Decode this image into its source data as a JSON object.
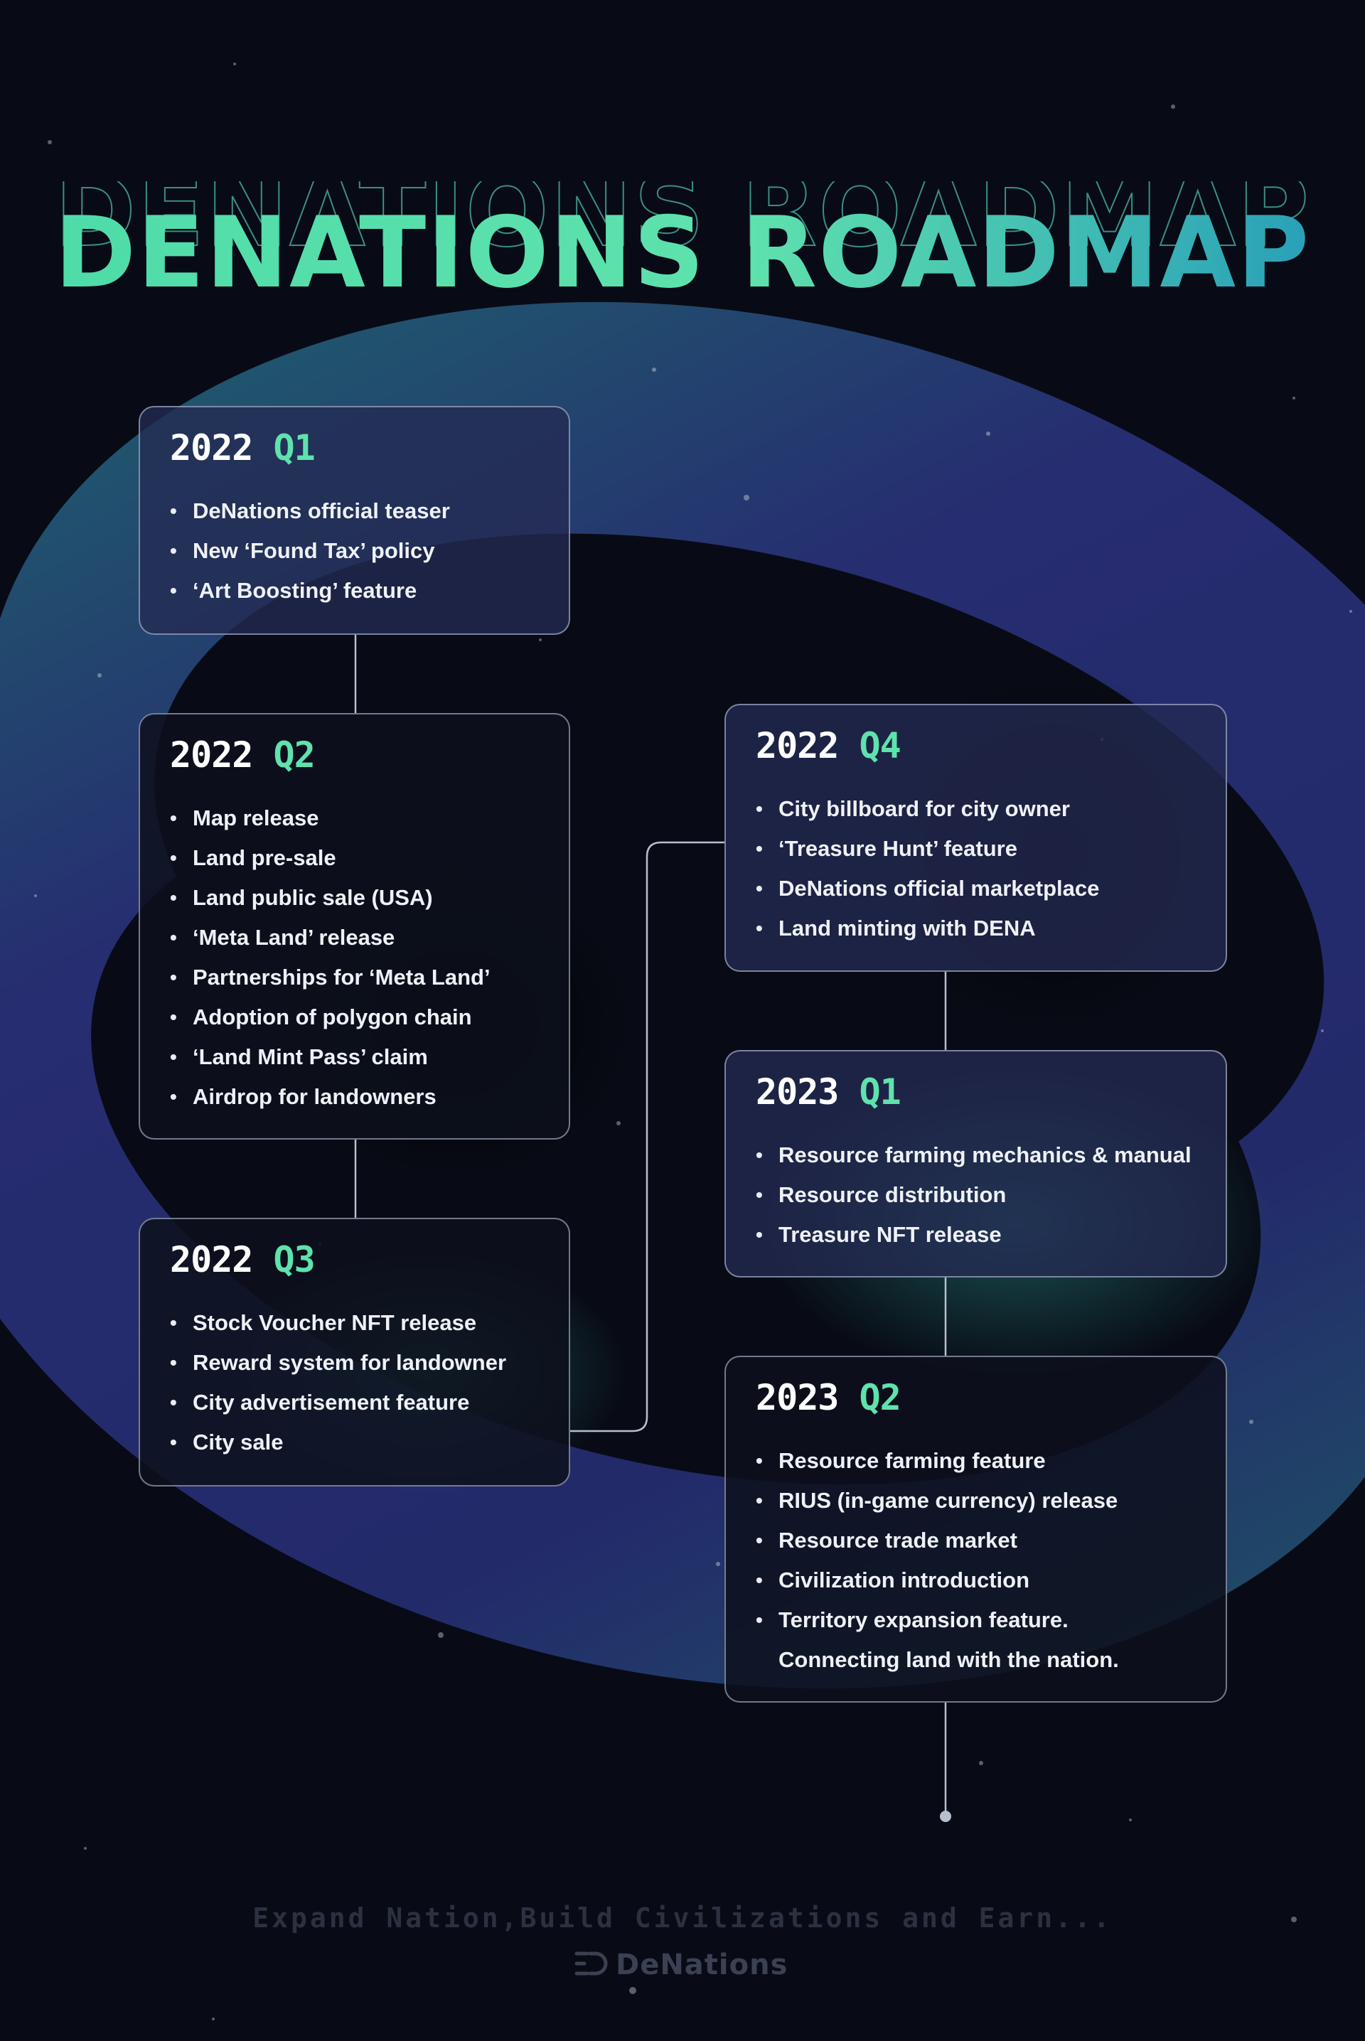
{
  "title": "DENATIONS ROADMAP",
  "colors": {
    "background": "#080b15",
    "accent_green": "#5fe2ad",
    "accent_teal": "#2aa6b5",
    "card_border": "#c8d2eb",
    "ring_blue": "#232a6a",
    "ring_teal": "#1f5f68"
  },
  "milestones": [
    {
      "year": "2022",
      "quarter": "Q1",
      "items": [
        "DeNations official teaser",
        "New ‘Found Tax’ policy",
        "‘Art Boosting’ feature"
      ]
    },
    {
      "year": "2022",
      "quarter": "Q2",
      "items": [
        "Map release",
        "Land pre-sale",
        "Land public sale (USA)",
        "‘Meta Land’ release",
        "Partnerships for ‘Meta Land’",
        "Adoption of polygon chain",
        "‘Land Mint Pass’ claim",
        "Airdrop for landowners"
      ]
    },
    {
      "year": "2022",
      "quarter": "Q3",
      "items": [
        "Stock Voucher NFT release",
        "Reward system for landowner",
        "City advertisement feature",
        "City sale"
      ]
    },
    {
      "year": "2022",
      "quarter": "Q4",
      "items": [
        "City billboard for city owner",
        "‘Treasure Hunt’ feature",
        "DeNations official marketplace",
        "Land minting with DENA"
      ]
    },
    {
      "year": "2023",
      "quarter": "Q1",
      "items": [
        "Resource farming mechanics & manual",
        "Resource distribution",
        "Treasure NFT release"
      ]
    },
    {
      "year": "2023",
      "quarter": "Q2",
      "items": [
        "Resource farming feature",
        "RIUS (in-game currency) release",
        "Resource trade market",
        "Civilization introduction",
        "Territory expansion feature.",
        "Connecting land with the nation."
      ]
    }
  ],
  "footer": {
    "tagline": "Expand Nation,Build Civilizations and Earn...",
    "logo_text": "DeNations",
    "logo_icon": "denations-logo-icon"
  }
}
